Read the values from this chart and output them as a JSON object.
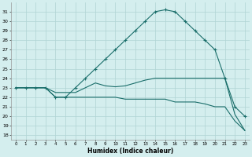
{
  "xlabel": "Humidex (Indice chaleur)",
  "bg_color": "#d4eeee",
  "line_color": "#1a6e6a",
  "grid_color": "#b0d4d4",
  "xlim": [
    -0.5,
    23.5
  ],
  "ylim": [
    17.5,
    32.0
  ],
  "xticks": [
    0,
    1,
    2,
    3,
    4,
    5,
    6,
    7,
    8,
    9,
    10,
    11,
    12,
    13,
    14,
    15,
    16,
    17,
    18,
    19,
    20,
    21,
    22,
    23
  ],
  "yticks": [
    18,
    19,
    20,
    21,
    22,
    23,
    24,
    25,
    26,
    27,
    28,
    29,
    30,
    31
  ],
  "curve1_x": [
    0,
    1,
    2,
    3,
    4,
    5,
    6,
    7,
    8,
    9,
    10,
    11,
    12,
    13,
    14,
    15,
    16,
    17,
    18,
    19,
    20,
    21,
    22,
    23
  ],
  "curve1_y": [
    23,
    23,
    23,
    23,
    22,
    22,
    23,
    24,
    25,
    26,
    27,
    28,
    29,
    30,
    31,
    31.2,
    31,
    30,
    29,
    28,
    27,
    24,
    21,
    20
  ],
  "curve2_x": [
    0,
    1,
    2,
    3,
    4,
    5,
    6,
    7,
    8,
    9,
    10,
    11,
    12,
    13,
    14,
    15,
    16,
    17,
    18,
    19,
    20,
    21,
    22,
    23
  ],
  "curve2_y": [
    23,
    23,
    23,
    23,
    22.5,
    22.5,
    22.5,
    23,
    23.5,
    23.2,
    23.1,
    23.2,
    23.5,
    23.8,
    24,
    24,
    24,
    24,
    24,
    24,
    24,
    24,
    20.2,
    18.5
  ],
  "curve3_x": [
    0,
    1,
    2,
    3,
    4,
    5,
    6,
    7,
    8,
    9,
    10,
    11,
    12,
    13,
    14,
    15,
    16,
    17,
    18,
    19,
    20,
    21,
    22,
    23
  ],
  "curve3_y": [
    23,
    23,
    23,
    23,
    22,
    22,
    22,
    22,
    22,
    22,
    22,
    21.8,
    21.8,
    21.8,
    21.8,
    21.8,
    21.5,
    21.5,
    21.5,
    21.3,
    21.0,
    21.0,
    19.5,
    18.5
  ]
}
